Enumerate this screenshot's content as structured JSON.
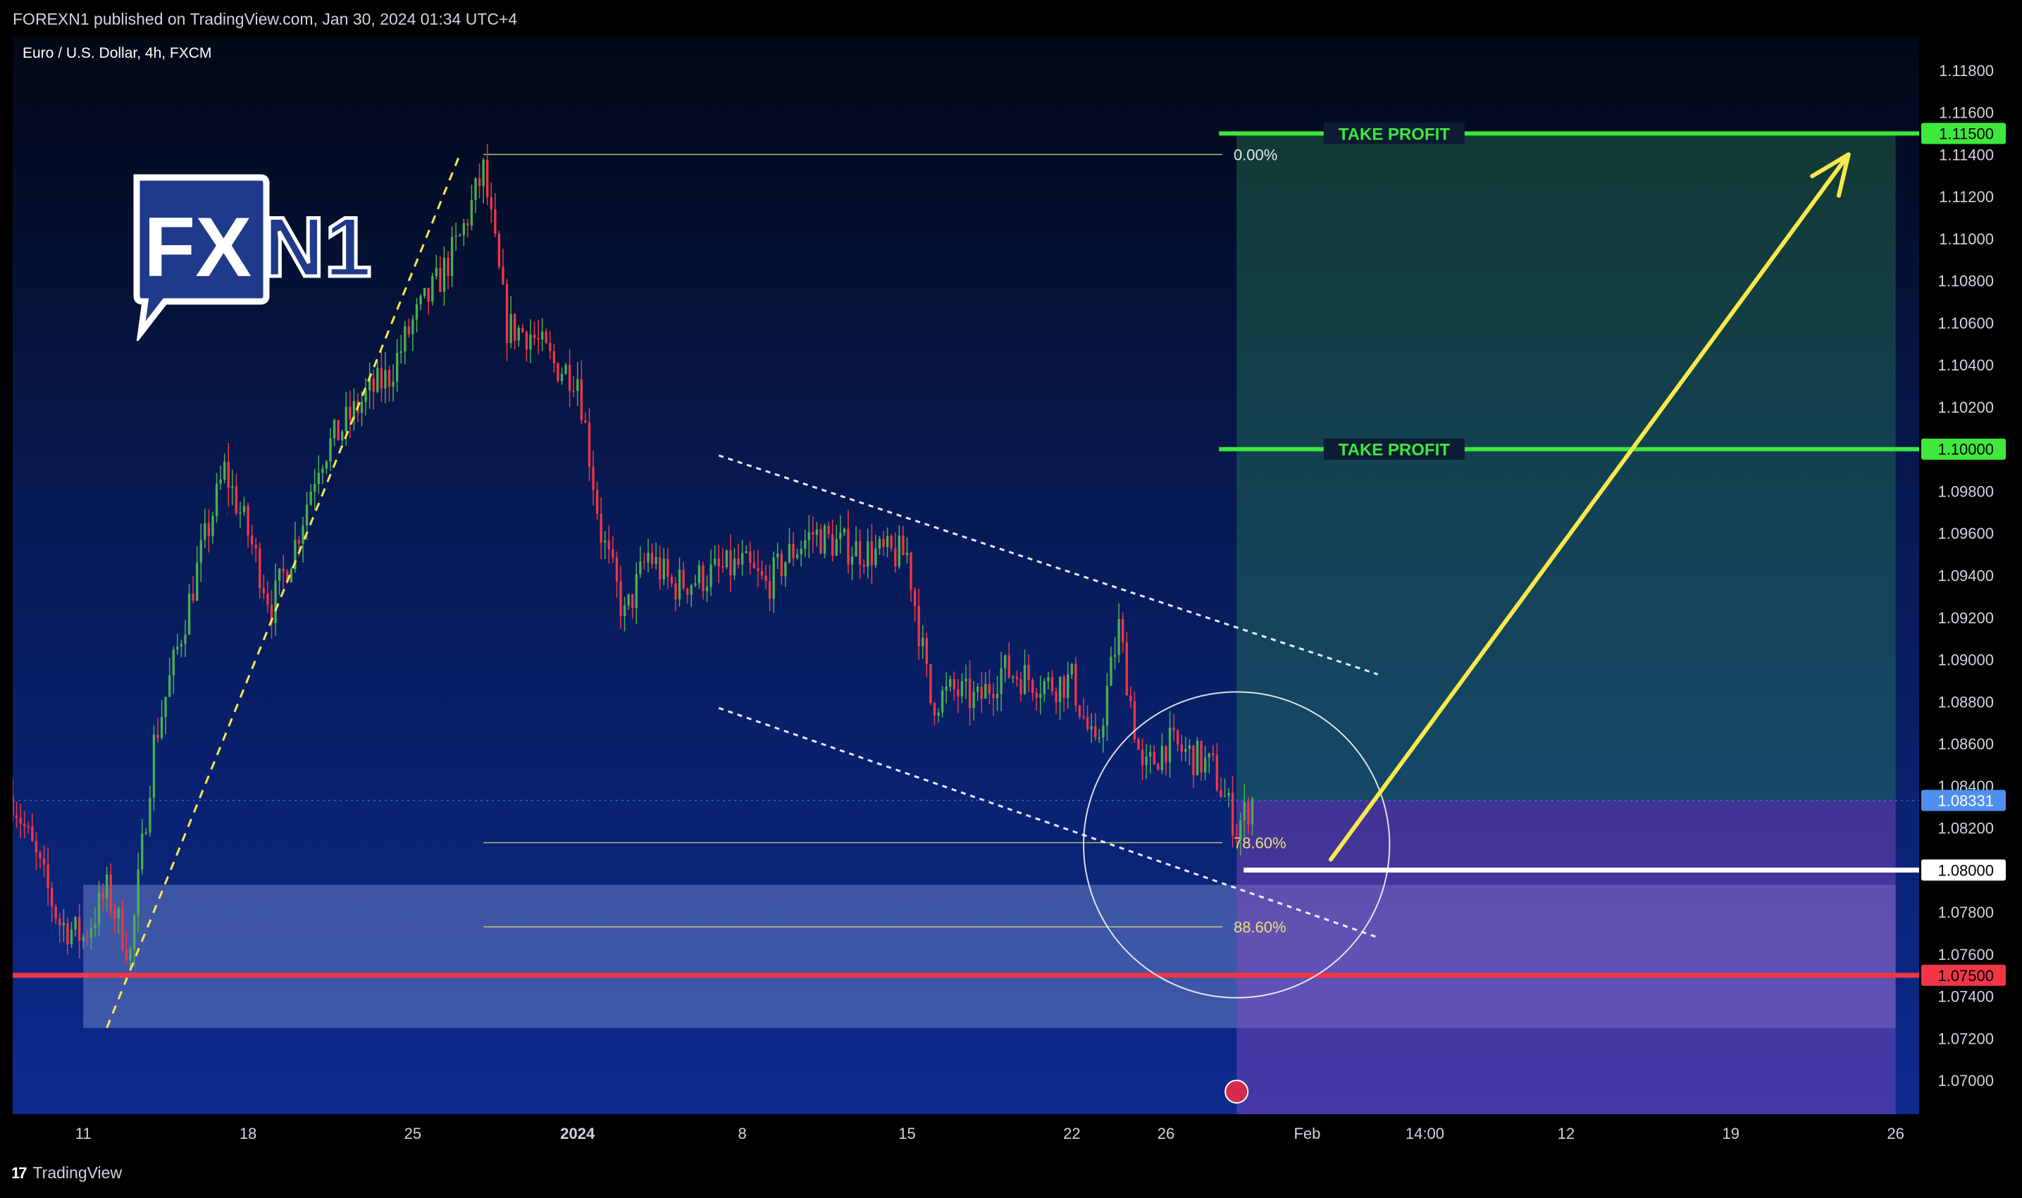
{
  "header": {
    "publish_line": "FOREXN1 published on TradingView.com, Jan 30, 2024 01:34 UTC+4",
    "symbol_title": "Euro / U.S. Dollar, 4h, FXCM"
  },
  "footer": {
    "brand": "TradingView",
    "brand_icon": "tradingview-logo-icon"
  },
  "logo": {
    "fx": "FX",
    "n1": "N1",
    "icon": "speech-bubble-logo"
  },
  "colors": {
    "up": "#4caf50",
    "down": "#f23645",
    "take_profit": "#3ee83e",
    "stop": "#f23645",
    "fib": "#e8e27a",
    "arrow": "#f7e94b",
    "current": "#4f8ff0",
    "support_zone": "#7d93d8"
  },
  "chart_data": {
    "type": "candlestick",
    "symbol": "Euro / U.S. Dollar",
    "timeframe": "4h",
    "source": "FXCM",
    "y_axis": {
      "range": [
        1.0684,
        1.1196
      ],
      "ticks": [
        "1.11800",
        "1.11600",
        "1.11400",
        "1.11200",
        "1.11000",
        "1.10800",
        "1.10600",
        "1.10400",
        "1.10200",
        "1.09800",
        "1.09600",
        "1.09400",
        "1.09200",
        "1.09000",
        "1.08800",
        "1.08600",
        "1.08400",
        "1.08200",
        "1.07800",
        "1.07600",
        "1.07400",
        "1.07200",
        "1.07000"
      ]
    },
    "x_axis": {
      "range": [
        "2023-12-08",
        "2024-02-27"
      ],
      "ticks": [
        {
          "label": "11",
          "date": "2023-12-11"
        },
        {
          "label": "18",
          "date": "2023-12-18"
        },
        {
          "label": "25",
          "date": "2023-12-25"
        },
        {
          "label": "2024",
          "date": "2024-01-01",
          "bold": true
        },
        {
          "label": "8",
          "date": "2024-01-08"
        },
        {
          "label": "15",
          "date": "2024-01-15"
        },
        {
          "label": "22",
          "date": "2024-01-22"
        },
        {
          "label": "26",
          "date": "2024-01-26"
        },
        {
          "label": "Feb",
          "date": "2024-02-01"
        },
        {
          "label": "14:00",
          "date": "2024-02-06"
        },
        {
          "label": "12",
          "date": "2024-02-12"
        },
        {
          "label": "19",
          "date": "2024-02-19"
        },
        {
          "label": "26",
          "date": "2024-02-26"
        }
      ]
    },
    "price_path": [
      [
        "2023-12-08",
        1.0835
      ],
      [
        "2023-12-09",
        1.0805
      ],
      [
        "2023-12-10",
        1.0775
      ],
      [
        "2023-12-11",
        1.0768
      ],
      [
        "2023-12-12",
        1.079
      ],
      [
        "2023-12-13",
        1.076
      ],
      [
        "2023-12-14",
        1.086
      ],
      [
        "2023-12-15",
        1.0905
      ],
      [
        "2023-12-16",
        1.095
      ],
      [
        "2023-12-17",
        1.099
      ],
      [
        "2023-12-18",
        1.096
      ],
      [
        "2023-12-19",
        1.0925
      ],
      [
        "2023-12-20",
        1.0955
      ],
      [
        "2023-12-21",
        1.0995
      ],
      [
        "2023-12-22",
        1.101
      ],
      [
        "2023-12-23",
        1.1025
      ],
      [
        "2023-12-24",
        1.1035
      ],
      [
        "2023-12-25",
        1.106
      ],
      [
        "2023-12-26",
        1.1078
      ],
      [
        "2023-12-27",
        1.11
      ],
      [
        "2023-12-28",
        1.1132
      ],
      [
        "2023-12-29",
        1.1058
      ],
      [
        "2023-12-30",
        1.1055
      ],
      [
        "2023-12-31",
        1.104
      ],
      [
        "2024-01-01",
        1.1035
      ],
      [
        "2024-01-02",
        1.096
      ],
      [
        "2024-01-03",
        1.092
      ],
      [
        "2024-01-04",
        1.095
      ],
      [
        "2024-01-05",
        1.0935
      ],
      [
        "2024-01-06",
        1.0938
      ],
      [
        "2024-01-07",
        1.0942
      ],
      [
        "2024-01-08",
        1.0945
      ],
      [
        "2024-01-09",
        1.0935
      ],
      [
        "2024-01-10",
        1.095
      ],
      [
        "2024-01-11",
        1.096
      ],
      [
        "2024-01-12",
        1.0955
      ],
      [
        "2024-01-13",
        1.0952
      ],
      [
        "2024-01-14",
        1.095
      ],
      [
        "2024-01-15",
        1.095
      ],
      [
        "2024-01-16",
        1.088
      ],
      [
        "2024-01-17",
        1.0885
      ],
      [
        "2024-01-18",
        1.088
      ],
      [
        "2024-01-19",
        1.0895
      ],
      [
        "2024-01-20",
        1.0892
      ],
      [
        "2024-01-21",
        1.0888
      ],
      [
        "2024-01-22",
        1.089
      ],
      [
        "2024-01-23",
        1.0855
      ],
      [
        "2024-01-24",
        1.0915
      ],
      [
        "2024-01-25",
        1.0845
      ],
      [
        "2024-01-26",
        1.086
      ],
      [
        "2024-01-27",
        1.0855
      ],
      [
        "2024-01-28",
        1.0848
      ],
      [
        "2024-01-29",
        1.082
      ],
      [
        "2024-01-29T16:00",
        1.0833
      ]
    ],
    "current_price": "1.08331",
    "levels": [
      {
        "price": 1.115,
        "label": "1.11500",
        "text": "TAKE PROFIT",
        "color": "#3ee83e"
      },
      {
        "price": 1.1,
        "label": "1.10000",
        "text": "TAKE PROFIT",
        "color": "#3ee83e"
      },
      {
        "price": 1.08,
        "label": "1.08000",
        "text": "",
        "color": "#ffffff"
      },
      {
        "price": 1.075,
        "label": "1.07500",
        "text": "",
        "color": "#f23645"
      }
    ],
    "fibonacci": [
      {
        "price": 1.114,
        "label": "0.00%"
      },
      {
        "price": 1.0813,
        "label": "78.60%"
      },
      {
        "price": 1.0773,
        "label": "88.60%"
      }
    ],
    "channel": {
      "upper": [
        [
          "2024-01-07",
          1.0997
        ],
        [
          "2024-02-04",
          1.0893
        ]
      ],
      "lower": [
        [
          "2024-01-07",
          1.0877
        ],
        [
          "2024-02-04",
          1.0768
        ]
      ]
    },
    "trendline": [
      [
        "2023-12-12",
        1.0725
      ],
      [
        "2023-12-27",
        1.114
      ]
    ],
    "support_zone": {
      "from": "2023-12-11",
      "to": "2024-02-26",
      "low": 1.0725,
      "high": 1.0793
    },
    "position": {
      "from": "2024-01-29",
      "to": "2024-02-26",
      "entry": 1.08331,
      "target": 1.115,
      "stop": 1.0684
    },
    "arrow": {
      "from": [
        "2024-02-02",
        1.0805
      ],
      "to": [
        "2024-02-24",
        1.114
      ]
    },
    "circle": {
      "center": [
        "2024-01-29",
        1.0812
      ],
      "radius_days": 6.5
    }
  }
}
